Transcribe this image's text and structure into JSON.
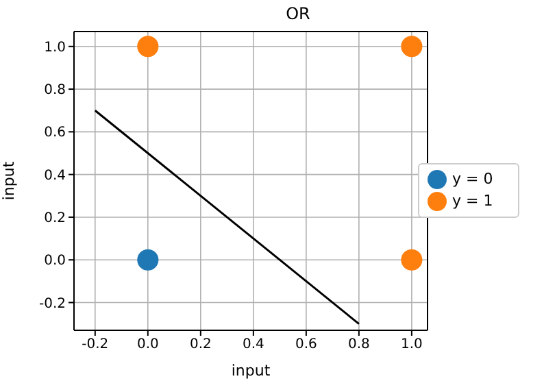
{
  "chart_data": {
    "type": "scatter",
    "title": "OR",
    "xlabel": "input",
    "ylabel": "input",
    "xlim": [
      -0.28,
      1.06
    ],
    "ylim": [
      -0.33,
      1.07
    ],
    "xticks": [
      -0.2,
      {
        "value": 0,
        "label": "0.0"
      },
      0.2,
      0.4,
      0.6,
      0.8,
      {
        "value": 1,
        "label": "1.0"
      }
    ],
    "yticks": [
      -0.2,
      {
        "value": 0,
        "label": "0.0"
      },
      0.2,
      0.4,
      0.6,
      0.8,
      {
        "value": 1,
        "label": "1.0"
      }
    ],
    "grid": true,
    "legend": "right",
    "series": [
      {
        "name": "y = 0",
        "color": "#1f77b4",
        "marker": "circle",
        "x": [
          0
        ],
        "values": [
          0
        ]
      },
      {
        "name": "y = 1",
        "color": "#ff7f0e",
        "marker": "circle",
        "x": [
          0,
          1,
          1
        ],
        "values": [
          1,
          1,
          0
        ]
      },
      {
        "type": "line",
        "color": "#000000",
        "marker": "none",
        "x": [
          -0.2,
          0.8
        ],
        "values": [
          0.7,
          -0.3
        ]
      }
    ]
  }
}
